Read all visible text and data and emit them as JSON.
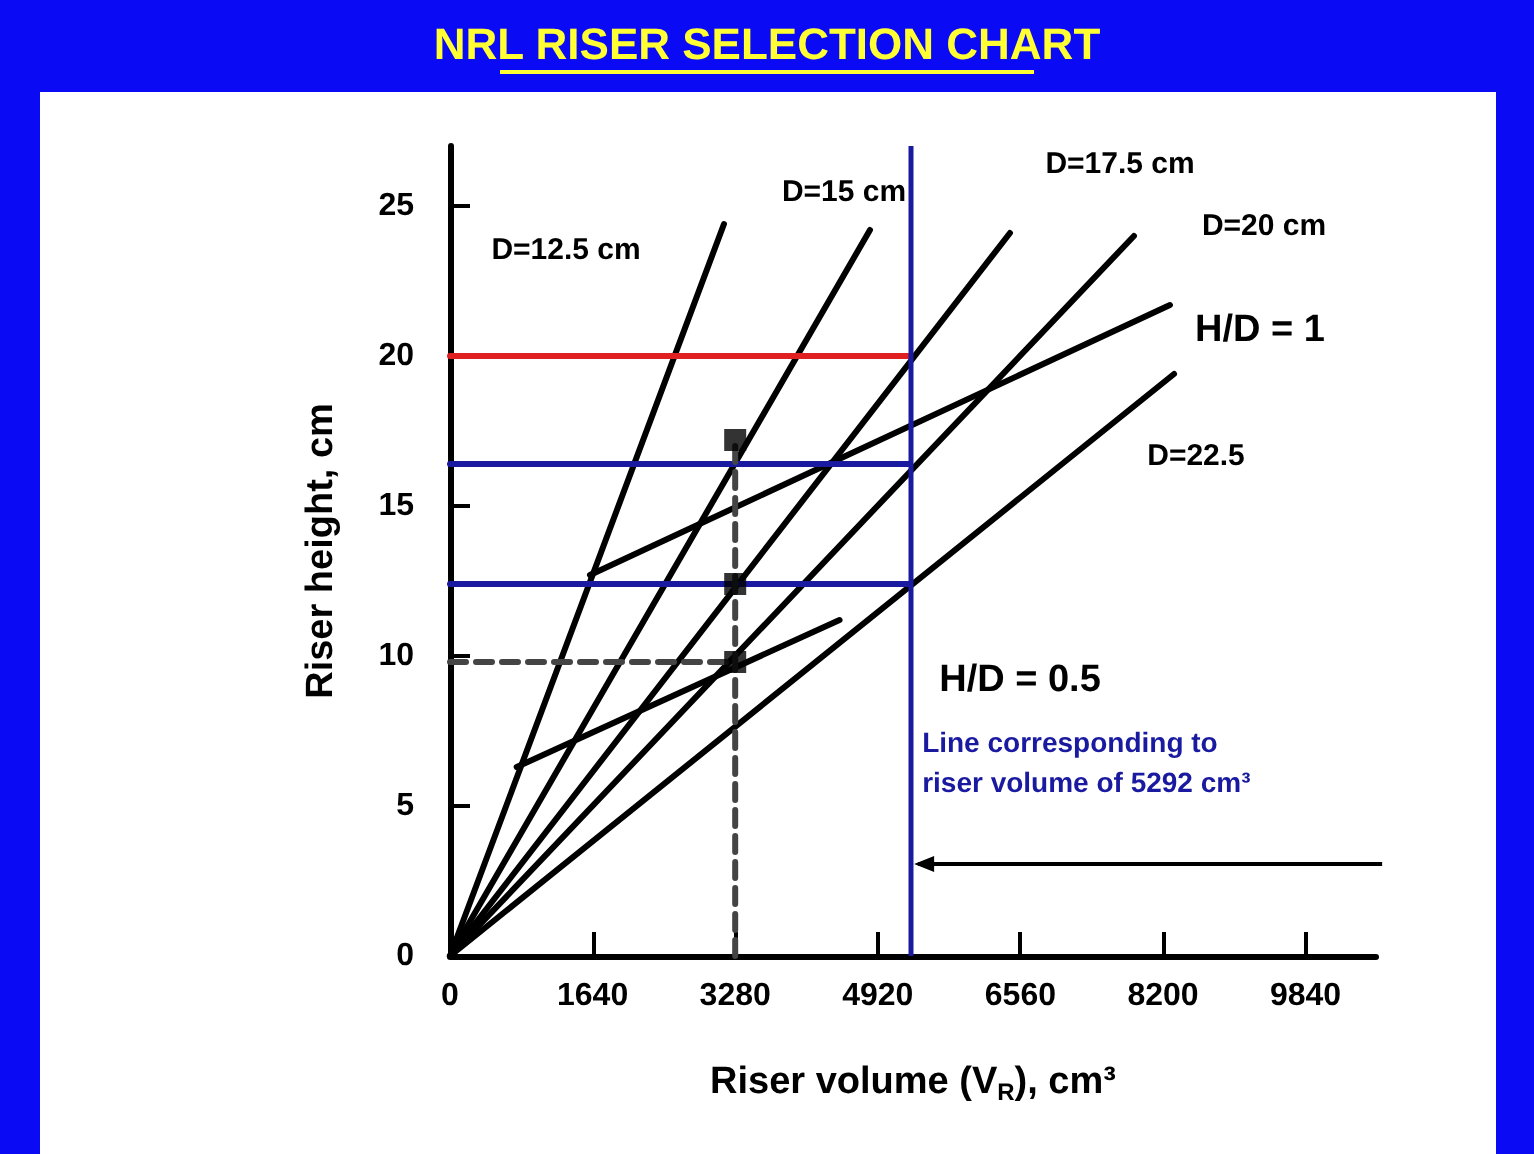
{
  "chart_data": {
    "type": "line",
    "title": "NRL RISER SELECTION CHART",
    "xlabel": "Riser volume (V$_{R}$), cm³",
    "ylabel": "Riser height, cm",
    "xlim": [
      0,
      10650
    ],
    "ylim": [
      0,
      27
    ],
    "xticks": [
      0,
      1640,
      3280,
      4920,
      6560,
      8200,
      9840
    ],
    "yticks": [
      0,
      5,
      10,
      15,
      20,
      25
    ],
    "grid": false,
    "series": [
      {
        "color": "#000000",
        "x": [
          0,
          3151
        ],
        "values": [
          0,
          24.4
        ]
      },
      {
        "color": "#000000",
        "x": [
          0,
          4830
        ],
        "values": [
          0,
          24.2
        ]
      },
      {
        "color": "#000000",
        "x": [
          0,
          6440
        ],
        "values": [
          0,
          24.1
        ]
      },
      {
        "color": "#000000",
        "x": [
          0,
          7866
        ],
        "values": [
          0,
          24
        ]
      },
      {
        "color": "#000000",
        "x": [
          0,
          8327
        ],
        "values": [
          0,
          19.4
        ]
      },
      {
        "color": "#000000",
        "x": [
          1610,
          8280
        ],
        "values": [
          12.7,
          21.7
        ]
      },
      {
        "color": "#000000",
        "x": [
          767,
          4480
        ],
        "values": [
          6.3,
          11.2
        ]
      },
      {
        "color": "#e02020",
        "x": [
          0,
          5292
        ],
        "values": [
          20,
          20
        ]
      },
      {
        "color": "#1a1aa0",
        "x": [
          0,
          5292
        ],
        "values": [
          16.4,
          16.4
        ]
      },
      {
        "color": "#1a1aa0",
        "x": [
          0,
          5292
        ],
        "values": [
          12.4,
          12.4
        ]
      },
      {
        "color": "#444444",
        "x": [
          0,
          3280
        ],
        "values": [
          9.8,
          9.8
        ],
        "line_style": "dashed"
      },
      {
        "color": "#444444",
        "x": [
          3280,
          3280
        ],
        "values": [
          0,
          17.2
        ],
        "line_style": "dashed"
      },
      {
        "type": "scatter",
        "color": "#000000",
        "marker": "square",
        "x": [
          3280,
          3280,
          3280
        ],
        "values": [
          17.2,
          12.4,
          9.8
        ]
      }
    ],
    "ref_lines": [
      {
        "axis": "x",
        "value": 5292,
        "color": "#1a1aa0",
        "label": "Line corresponding to riser volume of 5292 cm³"
      }
    ],
    "annotations": [
      "D=12.5 cm",
      "D=15 cm",
      "D=17.5 cm",
      "D=20 cm",
      "H/D = 1",
      "D=22.5",
      "H/D = 0.5"
    ]
  }
}
